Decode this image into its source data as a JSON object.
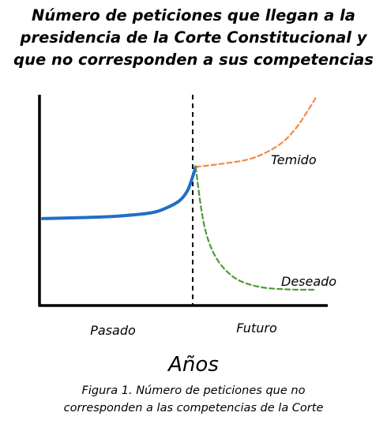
{
  "title_lines": [
    "Número de peticiones que llegan a la",
    "presidencia de la Corte Constitucional y",
    "que no corresponden a sus competencias"
  ],
  "caption_lines": [
    "Figura 1. Número de peticiones que no",
    "corresponden a las competencias de la Corte"
  ],
  "chart_data": {
    "type": "line",
    "title": "Número de peticiones que llegan a la presidencia de la Corte Constitucional y que no corresponden a sus competencias",
    "xlabel": "Años",
    "ylabel": "",
    "x_ticklabels": [
      "Pasado",
      "Futuro"
    ],
    "x_divider_label": "",
    "colors": {
      "pasado": "#1f6fc6",
      "temido": "#f28a45",
      "deseado": "#4e9a3a",
      "divider": "#000000"
    },
    "series": [
      {
        "name": "",
        "style": "solid",
        "color_key": "pasado",
        "points": [
          [
            0,
            0.53
          ],
          [
            0.1,
            0.535
          ],
          [
            0.2,
            0.54
          ],
          [
            0.3,
            0.55
          ],
          [
            0.4,
            0.57
          ],
          [
            0.45,
            0.6
          ],
          [
            0.5,
            0.65
          ],
          [
            0.53,
            0.72
          ],
          [
            0.55,
            0.82
          ],
          [
            0.56,
            0.88
          ]
        ]
      },
      {
        "name": "Temido",
        "style": "dashed",
        "color_key": "temido",
        "points": [
          [
            0.56,
            0.88
          ],
          [
            0.65,
            0.9
          ],
          [
            0.75,
            0.93
          ],
          [
            0.82,
            0.98
          ],
          [
            0.88,
            1.05
          ],
          [
            0.93,
            1.15
          ],
          [
            0.97,
            1.26
          ],
          [
            1.0,
            1.35
          ]
        ]
      },
      {
        "name": "Deseado",
        "style": "dashed",
        "color_key": "deseado",
        "points": [
          [
            0.56,
            0.88
          ],
          [
            0.58,
            0.6
          ],
          [
            0.6,
            0.42
          ],
          [
            0.63,
            0.28
          ],
          [
            0.67,
            0.18
          ],
          [
            0.72,
            0.11
          ],
          [
            0.8,
            0.065
          ],
          [
            0.9,
            0.05
          ],
          [
            1.0,
            0.048
          ]
        ]
      }
    ],
    "divider_x": 0.56,
    "grid": false
  }
}
